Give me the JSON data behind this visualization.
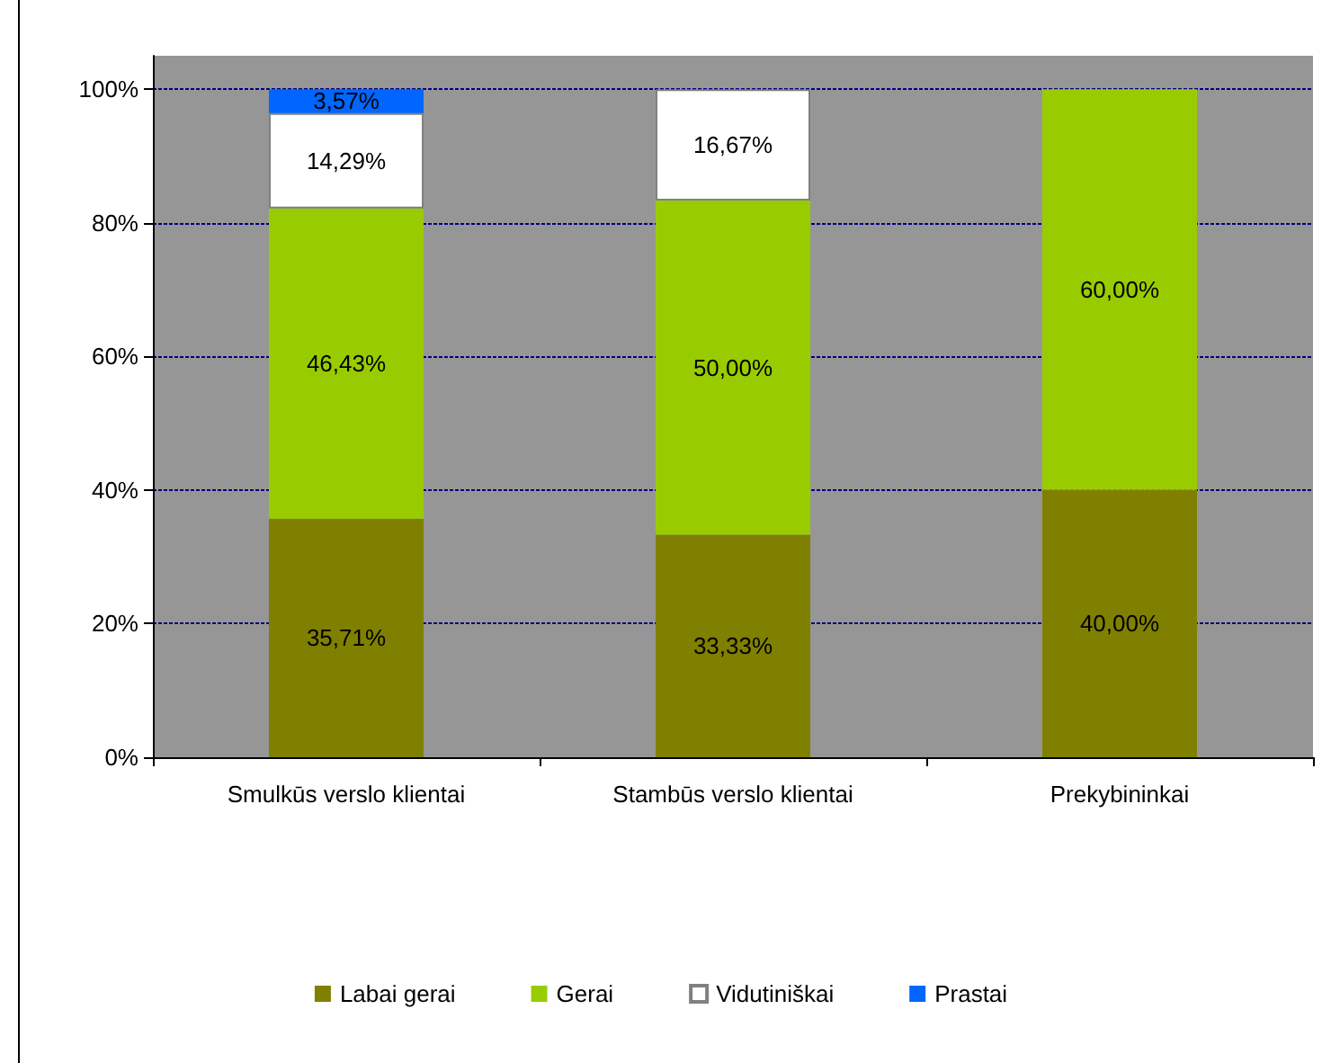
{
  "chart_data": {
    "type": "bar",
    "categories": [
      "Smulkūs verslo klientai",
      "Stambūs verslo klientai",
      "Prekybininkai"
    ],
    "series": [
      {
        "name": "Labai gerai",
        "color": "#808000",
        "values": [
          35.71,
          33.33,
          40.0
        ],
        "value_labels": [
          "35,71%",
          "33,33%",
          "40,00%"
        ]
      },
      {
        "name": "Gerai",
        "color": "#99cc00",
        "values": [
          46.43,
          50.0,
          60.0
        ],
        "value_labels": [
          "46,43%",
          "50,00%",
          "60,00%"
        ]
      },
      {
        "name": "Vidutiniškai",
        "color": "#ffffff",
        "values": [
          14.29,
          16.67,
          null
        ],
        "value_labels": [
          "14,29%",
          "16,67%",
          null
        ]
      },
      {
        "name": "Prastai",
        "color": "#0066ff",
        "values": [
          3.57,
          null,
          null
        ],
        "value_labels": [
          "3,57%",
          null,
          null
        ]
      }
    ],
    "stacked": true,
    "ylim": [
      0,
      105
    ],
    "yticks": [
      {
        "value": 0,
        "label": "0%"
      },
      {
        "value": 20,
        "label": "20%"
      },
      {
        "value": 40,
        "label": "40%"
      },
      {
        "value": 60,
        "label": "60%"
      },
      {
        "value": 80,
        "label": "80%"
      },
      {
        "value": 100,
        "label": "100%"
      }
    ],
    "grid": "y",
    "legend": "bottom"
  }
}
